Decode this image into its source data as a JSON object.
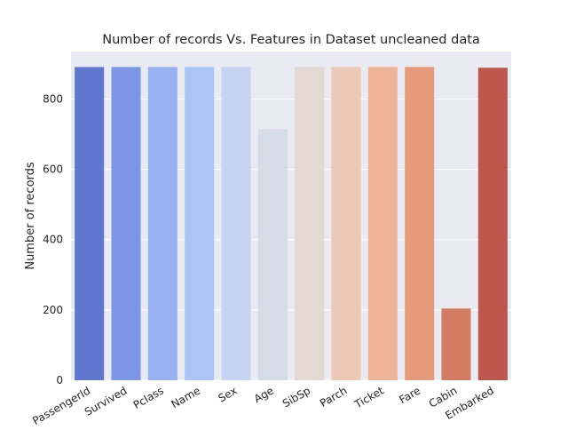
{
  "chart_data": {
    "type": "bar",
    "title": "Number of records Vs. Features in Dataset uncleaned data",
    "xlabel": "",
    "ylabel": "Number of records",
    "categories": [
      "PassengerId",
      "Survived",
      "Pclass",
      "Name",
      "Sex",
      "Age",
      "SibSp",
      "Parch",
      "Ticket",
      "Fare",
      "Cabin",
      "Embarked"
    ],
    "values": [
      891,
      891,
      891,
      891,
      891,
      714,
      891,
      891,
      891,
      891,
      204,
      889
    ],
    "colors": [
      "#6077cf",
      "#7b97e6",
      "#97b1f1",
      "#adc4f7",
      "#c4d3f1",
      "#d6dce6",
      "#e4d8d2",
      "#ecc8b6",
      "#efb497",
      "#e59a7c",
      "#d47b64",
      "#bd564c"
    ],
    "ylim": [
      0,
      935
    ],
    "yticks": [
      0,
      200,
      400,
      600,
      800
    ],
    "grid": true,
    "background": "#eaeaf2",
    "legend": "none"
  }
}
